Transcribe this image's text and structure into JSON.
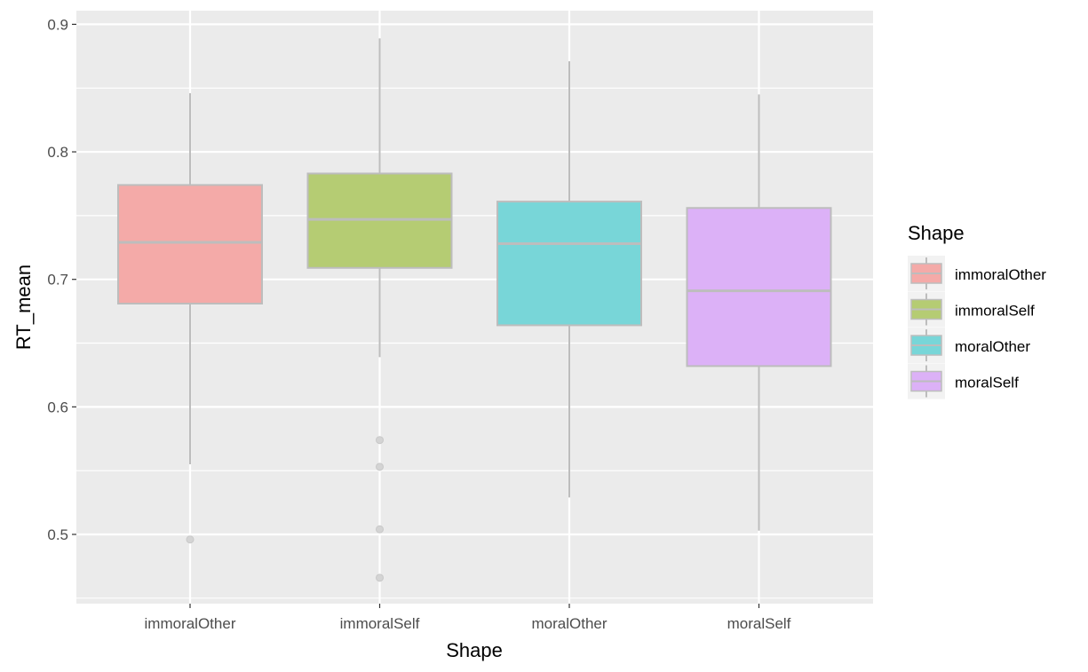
{
  "chart_data": {
    "type": "boxplot",
    "title": "",
    "xlabel": "Shape",
    "ylabel": "RT_mean",
    "ylim": [
      0.45,
      0.91
    ],
    "yticks": [
      0.5,
      0.6,
      0.7,
      0.8,
      0.9
    ],
    "ytick_labels": [
      "0.5",
      "0.6",
      "0.7",
      "0.8",
      "0.9"
    ],
    "categories": [
      "immoralOther",
      "immoralSelf",
      "moralOther",
      "moralSelf"
    ],
    "grid": true,
    "legend": {
      "title": "Shape",
      "placement": "right",
      "entries": [
        "immoralOther",
        "immoralSelf",
        "moralOther",
        "moralSelf"
      ]
    },
    "colors": {
      "panel": "#ebebeb",
      "grid": "#ffffff",
      "outline": "#bdbdbd",
      "fills": [
        "#f4aaa8",
        "#b5cc73",
        "#78d6d8",
        "#dcb1f7"
      ]
    },
    "boxes": [
      {
        "name": "immoralOther",
        "whisker_low": 0.555,
        "q1": 0.681,
        "median": 0.729,
        "q3": 0.774,
        "whisker_high": 0.846,
        "outliers": [
          0.496
        ]
      },
      {
        "name": "immoralSelf",
        "whisker_low": 0.639,
        "q1": 0.709,
        "median": 0.747,
        "q3": 0.783,
        "whisker_high": 0.889,
        "outliers": [
          0.574,
          0.553,
          0.504,
          0.466
        ]
      },
      {
        "name": "moralOther",
        "whisker_low": 0.529,
        "q1": 0.664,
        "median": 0.728,
        "q3": 0.761,
        "whisker_high": 0.871,
        "outliers": []
      },
      {
        "name": "moralSelf",
        "whisker_low": 0.503,
        "q1": 0.632,
        "median": 0.691,
        "q3": 0.756,
        "whisker_high": 0.845,
        "outliers": []
      }
    ]
  }
}
